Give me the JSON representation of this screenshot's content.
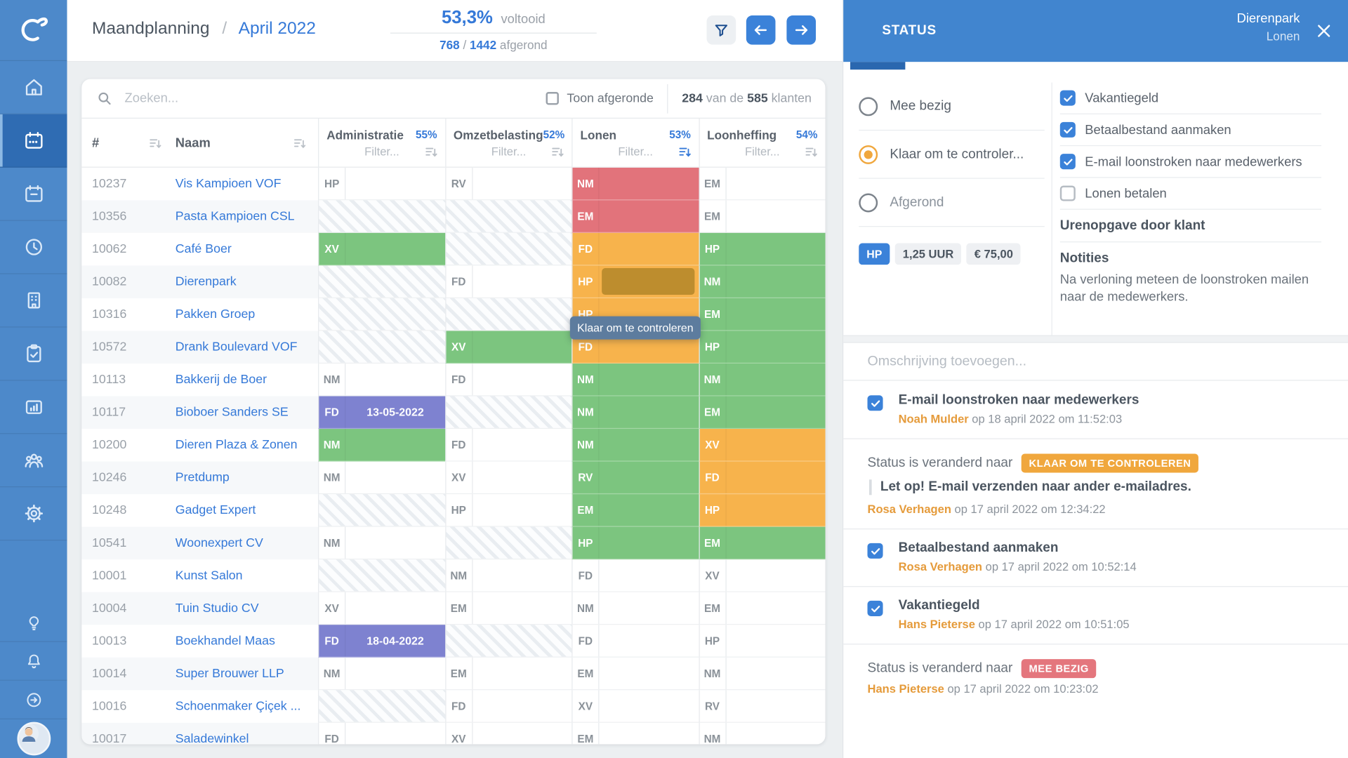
{
  "colors": {
    "accent_blue": "#3579d8",
    "sidebar_blue": "#4d89ca",
    "panel_blue": "#4185cf",
    "green": "#7cc57f",
    "orange": "#f7b34c",
    "red": "#e2737b",
    "purple": "#7e82d0",
    "selected_cell": "#bd8d2e",
    "badge_orange": "#f0a73d",
    "badge_red": "#e4767d"
  },
  "sidebar": {
    "logo_icon": "app-logo",
    "nav": [
      {
        "icon": "home"
      },
      {
        "icon": "calendar-month",
        "active": true
      },
      {
        "icon": "calendar"
      },
      {
        "icon": "clock"
      },
      {
        "icon": "company"
      },
      {
        "icon": "tasks"
      },
      {
        "icon": "reports"
      },
      {
        "icon": "team"
      },
      {
        "icon": "settings"
      }
    ],
    "bottom": [
      {
        "icon": "idea"
      },
      {
        "icon": "bell"
      },
      {
        "icon": "logout"
      }
    ]
  },
  "header": {
    "title": "Maandplanning",
    "separator": "/",
    "period": "April 2022",
    "pct": "53,3%",
    "pct_label": "voltooid",
    "done": "768",
    "slash": "/",
    "total": "1442",
    "done_label": "afgerond"
  },
  "toolbar": {
    "search_placeholder": "Zoeken...",
    "show_completed_label": "Toon afgeronde",
    "count_b1": "284",
    "count_mid": "van de",
    "count_b2": "585",
    "count_suffix": "klanten"
  },
  "table": {
    "col_id": "#",
    "col_name": "Naam",
    "filter_placeholder": "Filter...",
    "columns": [
      {
        "label": "Administratie",
        "pct": "55%",
        "sort_active": false
      },
      {
        "label": "Omzetbelasting",
        "pct": "52%",
        "sort_active": false
      },
      {
        "label": "Lonen",
        "pct": "53%",
        "sort_active": true
      },
      {
        "label": "Loonheffing",
        "pct": "54%",
        "sort_active": false
      }
    ],
    "rows": [
      {
        "id": "10237",
        "name": "Vis Kampioen VOF",
        "cells": [
          {
            "code": "HP",
            "variant": "plain"
          },
          {
            "code": "RV",
            "variant": "plain"
          },
          {
            "code": "NM",
            "variant": "red"
          },
          {
            "code": "EM",
            "variant": "plain"
          }
        ]
      },
      {
        "id": "10356",
        "name": "Pasta Kampioen CSL",
        "cells": [
          {
            "code": "",
            "variant": "striped"
          },
          {
            "code": "",
            "variant": "striped"
          },
          {
            "code": "EM",
            "variant": "red"
          },
          {
            "code": "EM",
            "variant": "plain"
          }
        ]
      },
      {
        "id": "10062",
        "name": "Café Boer",
        "cells": [
          {
            "code": "XV",
            "variant": "green"
          },
          {
            "code": "",
            "variant": "striped"
          },
          {
            "code": "FD",
            "variant": "orange"
          },
          {
            "code": "HP",
            "variant": "green"
          }
        ]
      },
      {
        "id": "10082",
        "name": "Dierenpark",
        "cells": [
          {
            "code": "",
            "variant": "striped"
          },
          {
            "code": "FD",
            "variant": "plain"
          },
          {
            "code": "HP",
            "variant": "orange",
            "selected": true
          },
          {
            "code": "NM",
            "variant": "green"
          }
        ]
      },
      {
        "id": "10316",
        "name": "Pakken Groep",
        "cells": [
          {
            "code": "",
            "variant": "striped"
          },
          {
            "code": "",
            "variant": "striped"
          },
          {
            "code": "HP",
            "variant": "orange"
          },
          {
            "code": "EM",
            "variant": "green"
          }
        ]
      },
      {
        "id": "10572",
        "name": "Drank Boulevard VOF",
        "cells": [
          {
            "code": "",
            "variant": "striped"
          },
          {
            "code": "XV",
            "variant": "green"
          },
          {
            "code": "FD",
            "variant": "orange"
          },
          {
            "code": "HP",
            "variant": "green"
          }
        ]
      },
      {
        "id": "10113",
        "name": "Bakkerij de Boer",
        "cells": [
          {
            "code": "NM",
            "variant": "plain"
          },
          {
            "code": "FD",
            "variant": "plain"
          },
          {
            "code": "NM",
            "variant": "green"
          },
          {
            "code": "NM",
            "variant": "green"
          }
        ]
      },
      {
        "id": "10117",
        "name": "Bioboer Sanders SE",
        "cells": [
          {
            "code": "FD",
            "variant": "purple",
            "date": "13-05-2022"
          },
          {
            "code": "",
            "variant": "striped"
          },
          {
            "code": "NM",
            "variant": "green"
          },
          {
            "code": "EM",
            "variant": "green"
          }
        ]
      },
      {
        "id": "10200",
        "name": "Dieren Plaza & Zonen",
        "cells": [
          {
            "code": "NM",
            "variant": "green"
          },
          {
            "code": "FD",
            "variant": "plain"
          },
          {
            "code": "NM",
            "variant": "green"
          },
          {
            "code": "XV",
            "variant": "orange"
          }
        ]
      },
      {
        "id": "10246",
        "name": "Pretdump",
        "cells": [
          {
            "code": "NM",
            "variant": "plain"
          },
          {
            "code": "XV",
            "variant": "plain"
          },
          {
            "code": "RV",
            "variant": "green"
          },
          {
            "code": "FD",
            "variant": "orange"
          }
        ]
      },
      {
        "id": "10248",
        "name": "Gadget Expert",
        "cells": [
          {
            "code": "",
            "variant": "striped"
          },
          {
            "code": "HP",
            "variant": "plain"
          },
          {
            "code": "EM",
            "variant": "green"
          },
          {
            "code": "HP",
            "variant": "orange"
          }
        ]
      },
      {
        "id": "10541",
        "name": "Woonexpert CV",
        "cells": [
          {
            "code": "NM",
            "variant": "plain"
          },
          {
            "code": "",
            "variant": "striped"
          },
          {
            "code": "HP",
            "variant": "green"
          },
          {
            "code": "EM",
            "variant": "green"
          }
        ]
      },
      {
        "id": "10001",
        "name": "Kunst Salon",
        "cells": [
          {
            "code": "",
            "variant": "striped"
          },
          {
            "code": "NM",
            "variant": "plain"
          },
          {
            "code": "FD",
            "variant": "plain"
          },
          {
            "code": "XV",
            "variant": "plain"
          }
        ]
      },
      {
        "id": "10004",
        "name": "Tuin Studio CV",
        "cells": [
          {
            "code": "XV",
            "variant": "plain"
          },
          {
            "code": "EM",
            "variant": "plain"
          },
          {
            "code": "NM",
            "variant": "plain"
          },
          {
            "code": "EM",
            "variant": "plain"
          }
        ]
      },
      {
        "id": "10013",
        "name": "Boekhandel Maas",
        "cells": [
          {
            "code": "FD",
            "variant": "purple",
            "date": "18-04-2022"
          },
          {
            "code": "",
            "variant": "striped"
          },
          {
            "code": "FD",
            "variant": "plain"
          },
          {
            "code": "HP",
            "variant": "plain"
          }
        ]
      },
      {
        "id": "10014",
        "name": "Super Brouwer LLP",
        "cells": [
          {
            "code": "NM",
            "variant": "plain"
          },
          {
            "code": "EM",
            "variant": "plain"
          },
          {
            "code": "EM",
            "variant": "plain"
          },
          {
            "code": "NM",
            "variant": "plain"
          }
        ]
      },
      {
        "id": "10016",
        "name": "Schoenmaker Çiçek ...",
        "cells": [
          {
            "code": "",
            "variant": "striped"
          },
          {
            "code": "FD",
            "variant": "plain"
          },
          {
            "code": "XV",
            "variant": "plain"
          },
          {
            "code": "RV",
            "variant": "plain"
          }
        ]
      },
      {
        "id": "10017",
        "name": "Saladewinkel",
        "cells": [
          {
            "code": "FD",
            "variant": "plain"
          },
          {
            "code": "XV",
            "variant": "plain"
          },
          {
            "code": "EM",
            "variant": "plain"
          },
          {
            "code": "NM",
            "variant": "plain"
          }
        ]
      }
    ]
  },
  "tooltip": "Klaar om te controleren",
  "panel": {
    "title": "STATUS",
    "client": "Dierenpark",
    "client_sub": "Lonen",
    "radios": [
      {
        "label": "Mee bezig",
        "on": false,
        "dim": false
      },
      {
        "label": "Klaar om te controler...",
        "on": true,
        "dim": false
      },
      {
        "label": "Afgerond",
        "on": false,
        "dim": true
      }
    ],
    "hp_chip": "HP",
    "hours_chip": "1,25 UUR",
    "amount_chip": "€ 75,00",
    "checks": [
      {
        "label": "Vakantiegeld",
        "checked": true
      },
      {
        "label": "Betaalbestand aanmaken",
        "checked": true
      },
      {
        "label": "E-mail loonstroken naar medewerkers",
        "checked": true
      },
      {
        "label": "Lonen betalen",
        "checked": false
      }
    ],
    "uren_label": "Urenopgave door klant",
    "notes_title": "Notities",
    "notes_body": "Na verloning meteen de loonstroken mailen naar de medewerkers.",
    "comment_placeholder": "Omschrijving toevoegen...",
    "feed": [
      {
        "type": "check",
        "title": "E-mail loonstroken naar medewerkers",
        "author": "Noah Mulder",
        "meta": "op 18 april 2022 om 11:52:03"
      },
      {
        "type": "status",
        "prefix": "Status is veranderd naar",
        "badge": "KLAAR OM TE CONTROLEREN",
        "badge_color": "orange",
        "note": "Let op! E-mail verzenden naar ander e-mailadres.",
        "author": "Rosa Verhagen",
        "meta": "op 17 april 2022 om 12:34:22"
      },
      {
        "type": "check",
        "title": "Betaalbestand aanmaken",
        "author": "Rosa Verhagen",
        "meta": "op 17 april 2022 om 10:52:14"
      },
      {
        "type": "check",
        "title": "Vakantiegeld",
        "author": "Hans Pieterse",
        "meta": "op 17 april 2022 om 10:51:05"
      },
      {
        "type": "status",
        "prefix": "Status is veranderd naar",
        "badge": "MEE BEZIG",
        "badge_color": "red",
        "note": "",
        "author": "Hans Pieterse",
        "meta": "op 17 april 2022 om 10:23:02"
      }
    ]
  }
}
